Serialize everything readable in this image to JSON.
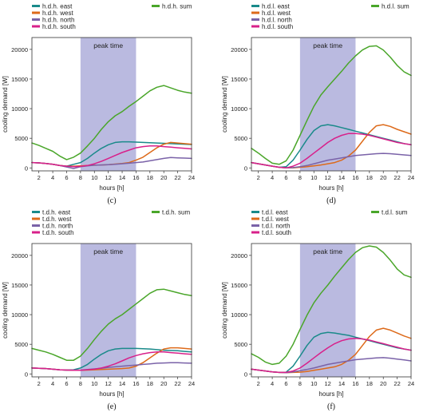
{
  "chart_data": [
    {
      "type": "line",
      "caption": "(c)",
      "xlabel": "hours [h]",
      "ylabel": "cooling demand [W]",
      "xlim": [
        1,
        24
      ],
      "ylim": [
        -500,
        22000
      ],
      "xticks": [
        2,
        4,
        6,
        8,
        10,
        12,
        14,
        16,
        18,
        20,
        22,
        24
      ],
      "yticks": [
        0,
        5000,
        10000,
        15000,
        20000
      ],
      "shaded_region": {
        "label": "peak time",
        "x_start": 8,
        "x_end": 16,
        "color": "#b3b3dd"
      },
      "legend": "top",
      "x": [
        1,
        2,
        3,
        4,
        5,
        6,
        7,
        8,
        9,
        10,
        11,
        12,
        13,
        14,
        15,
        16,
        17,
        18,
        19,
        20,
        21,
        22,
        23,
        24
      ],
      "series": [
        {
          "name": "h.d.h. east",
          "color": "#1a8a8a",
          "values": [
            900,
            850,
            750,
            600,
            400,
            300,
            600,
            900,
            1600,
            2500,
            3300,
            3900,
            4300,
            4400,
            4400,
            4350,
            4300,
            4250,
            4200,
            4150,
            4100,
            4050,
            4000,
            3950
          ]
        },
        {
          "name": "h.d.h. west",
          "color": "#dd6a1a",
          "values": [
            900,
            850,
            750,
            600,
            400,
            300,
            300,
            350,
            400,
            450,
            500,
            550,
            650,
            750,
            900,
            1300,
            1800,
            2600,
            3400,
            4000,
            4300,
            4200,
            4100,
            4000
          ]
        },
        {
          "name": "h.d.h. north",
          "color": "#7a62a8",
          "values": [
            900,
            850,
            750,
            600,
            400,
            150,
            -100,
            200,
            350,
            450,
            500,
            550,
            600,
            700,
            800,
            900,
            1000,
            1200,
            1400,
            1600,
            1750,
            1700,
            1650,
            1600
          ]
        },
        {
          "name": "h.d.h. south",
          "color": "#d8208a",
          "values": [
            900,
            850,
            750,
            600,
            400,
            300,
            200,
            250,
            400,
            700,
            1100,
            1600,
            2100,
            2600,
            3000,
            3400,
            3600,
            3700,
            3700,
            3600,
            3500,
            3400,
            3300,
            3200
          ]
        },
        {
          "name": "h.d.h. sum",
          "color": "#4aa62a",
          "values": [
            4200,
            3800,
            3300,
            2800,
            2000,
            1400,
            1800,
            2500,
            3700,
            5000,
            6500,
            7800,
            8800,
            9500,
            10400,
            11200,
            12100,
            13000,
            13600,
            13900,
            13500,
            13100,
            12800,
            12600
          ]
        }
      ]
    },
    {
      "type": "line",
      "caption": "(d)",
      "xlabel": "hours [h]",
      "ylabel": "cooling demand [W]",
      "xlim": [
        1,
        24
      ],
      "ylim": [
        -500,
        22000
      ],
      "xticks": [
        2,
        4,
        6,
        8,
        10,
        12,
        14,
        16,
        18,
        20,
        22,
        24
      ],
      "yticks": [
        0,
        5000,
        10000,
        15000,
        20000
      ],
      "shaded_region": {
        "label": "peak time",
        "x_start": 8,
        "x_end": 16,
        "color": "#b3b3dd"
      },
      "legend": "top",
      "x": [
        1,
        2,
        3,
        4,
        5,
        6,
        7,
        8,
        9,
        10,
        11,
        12,
        13,
        14,
        15,
        16,
        17,
        18,
        19,
        20,
        21,
        22,
        23,
        24
      ],
      "series": [
        {
          "name": "h.d.l. east",
          "color": "#1a8a8a",
          "values": [
            900,
            700,
            500,
            300,
            100,
            200,
            1300,
            3000,
            4800,
            6300,
            7100,
            7300,
            7100,
            6800,
            6500,
            6200,
            5900,
            5600,
            5300,
            5000,
            4700,
            4400,
            4100,
            3900
          ]
        },
        {
          "name": "h.d.l. west",
          "color": "#dd6a1a",
          "values": [
            900,
            700,
            500,
            300,
            100,
            0,
            0,
            100,
            200,
            350,
            500,
            700,
            900,
            1300,
            2000,
            3000,
            4500,
            6000,
            7100,
            7300,
            7000,
            6500,
            6100,
            5700
          ]
        },
        {
          "name": "h.d.l. north",
          "color": "#7a62a8",
          "values": [
            900,
            700,
            500,
            300,
            100,
            0,
            50,
            200,
            400,
            700,
            1000,
            1300,
            1500,
            1700,
            1900,
            2100,
            2200,
            2300,
            2400,
            2450,
            2400,
            2300,
            2200,
            2100
          ]
        },
        {
          "name": "h.d.l. south",
          "color": "#d8208a",
          "values": [
            900,
            700,
            500,
            300,
            100,
            0,
            300,
            800,
            1600,
            2500,
            3400,
            4300,
            5000,
            5500,
            5800,
            5800,
            5700,
            5500,
            5200,
            4900,
            4600,
            4300,
            4100,
            3900
          ]
        },
        {
          "name": "h.d.l. sum",
          "color": "#4aa62a",
          "values": [
            3300,
            2500,
            1600,
            800,
            600,
            1200,
            3000,
            5500,
            8000,
            10400,
            12300,
            13700,
            15000,
            16300,
            17700,
            18900,
            19900,
            20500,
            20600,
            19900,
            18700,
            17300,
            16200,
            15600
          ]
        }
      ]
    },
    {
      "type": "line",
      "caption": "(e)",
      "xlabel": "hours [h]",
      "ylabel": "cooling demand [W]",
      "xlim": [
        1,
        24
      ],
      "ylim": [
        -500,
        22000
      ],
      "xticks": [
        2,
        4,
        6,
        8,
        10,
        12,
        14,
        16,
        18,
        20,
        22,
        24
      ],
      "yticks": [
        0,
        5000,
        10000,
        15000,
        20000
      ],
      "shaded_region": {
        "label": "peak time",
        "x_start": 8,
        "x_end": 16,
        "color": "#b3b3dd"
      },
      "legend": "top",
      "x": [
        1,
        2,
        3,
        4,
        5,
        6,
        7,
        8,
        9,
        10,
        11,
        12,
        13,
        14,
        15,
        16,
        17,
        18,
        19,
        20,
        21,
        22,
        23,
        24
      ],
      "series": [
        {
          "name": "t.d.h. east",
          "color": "#1a8a8a",
          "values": [
            1000,
            950,
            900,
            800,
            700,
            650,
            700,
            1000,
            1600,
            2500,
            3300,
            3900,
            4200,
            4300,
            4300,
            4300,
            4250,
            4200,
            4100,
            4000,
            3950,
            3900,
            3800,
            3700
          ]
        },
        {
          "name": "t.d.h. west",
          "color": "#dd6a1a",
          "values": [
            1000,
            950,
            900,
            800,
            700,
            650,
            600,
            600,
            650,
            700,
            750,
            800,
            850,
            900,
            1000,
            1300,
            1900,
            2700,
            3500,
            4200,
            4400,
            4400,
            4300,
            4200
          ]
        },
        {
          "name": "t.d.h. north",
          "color": "#7a62a8",
          "values": [
            1000,
            950,
            900,
            800,
            700,
            650,
            650,
            650,
            750,
            850,
            950,
            1100,
            1200,
            1300,
            1400,
            1500,
            1600,
            1700,
            1800,
            1850,
            1900,
            1900,
            1850,
            1800
          ]
        },
        {
          "name": "t.d.h. south",
          "color": "#d8208a",
          "values": [
            1000,
            950,
            900,
            800,
            700,
            650,
            600,
            600,
            700,
            800,
            1000,
            1300,
            1700,
            2200,
            2700,
            3100,
            3400,
            3600,
            3700,
            3700,
            3600,
            3500,
            3400,
            3300
          ]
        },
        {
          "name": "t.d.h. sum",
          "color": "#4aa62a",
          "values": [
            4300,
            4000,
            3700,
            3300,
            2800,
            2300,
            2300,
            3000,
            4300,
            5800,
            7200,
            8400,
            9300,
            10000,
            10900,
            11800,
            12700,
            13600,
            14200,
            14300,
            14000,
            13700,
            13400,
            13200
          ]
        }
      ]
    },
    {
      "type": "line",
      "caption": "(f)",
      "xlabel": "hours [h]",
      "ylabel": "cooling demand [W]",
      "xlim": [
        1,
        24
      ],
      "ylim": [
        -500,
        22000
      ],
      "xticks": [
        2,
        4,
        6,
        8,
        10,
        12,
        14,
        16,
        18,
        20,
        22,
        24
      ],
      "yticks": [
        0,
        5000,
        10000,
        15000,
        20000
      ],
      "shaded_region": {
        "label": "peak time",
        "x_start": 8,
        "x_end": 16,
        "color": "#b3b3dd"
      },
      "legend": "top",
      "x": [
        1,
        2,
        3,
        4,
        5,
        6,
        7,
        8,
        9,
        10,
        11,
        12,
        13,
        14,
        15,
        16,
        17,
        18,
        19,
        20,
        21,
        22,
        23,
        24
      ],
      "series": [
        {
          "name": "t.d.l. east",
          "color": "#1a8a8a",
          "values": [
            800,
            650,
            500,
            350,
            250,
            300,
            1300,
            3000,
            4800,
            6200,
            6800,
            7000,
            6900,
            6700,
            6500,
            6200,
            5900,
            5600,
            5300,
            5000,
            4700,
            4400,
            4200,
            4000
          ]
        },
        {
          "name": "t.d.l. west",
          "color": "#dd6a1a",
          "values": [
            800,
            650,
            500,
            350,
            250,
            200,
            250,
            300,
            400,
            600,
            800,
            1000,
            1200,
            1600,
            2300,
            3300,
            4800,
            6300,
            7400,
            7700,
            7400,
            6900,
            6400,
            6000
          ]
        },
        {
          "name": "t.d.l. north",
          "color": "#7a62a8",
          "values": [
            800,
            650,
            500,
            350,
            250,
            200,
            350,
            550,
            750,
            1000,
            1300,
            1600,
            1800,
            2000,
            2200,
            2400,
            2500,
            2600,
            2700,
            2750,
            2650,
            2500,
            2350,
            2200
          ]
        },
        {
          "name": "t.d.l. south",
          "color": "#d8208a",
          "values": [
            800,
            650,
            500,
            350,
            250,
            250,
            500,
            1000,
            1800,
            2700,
            3600,
            4400,
            5100,
            5600,
            5900,
            6000,
            5900,
            5700,
            5400,
            5100,
            4800,
            4500,
            4200,
            4000
          ]
        },
        {
          "name": "t.d.l. sum",
          "color": "#4aa62a",
          "values": [
            3400,
            2800,
            2000,
            1600,
            1800,
            3000,
            5000,
            7500,
            9900,
            12000,
            13600,
            15000,
            16500,
            17900,
            19300,
            20500,
            21300,
            21600,
            21400,
            20500,
            19200,
            17700,
            16700,
            16300
          ]
        }
      ]
    }
  ]
}
